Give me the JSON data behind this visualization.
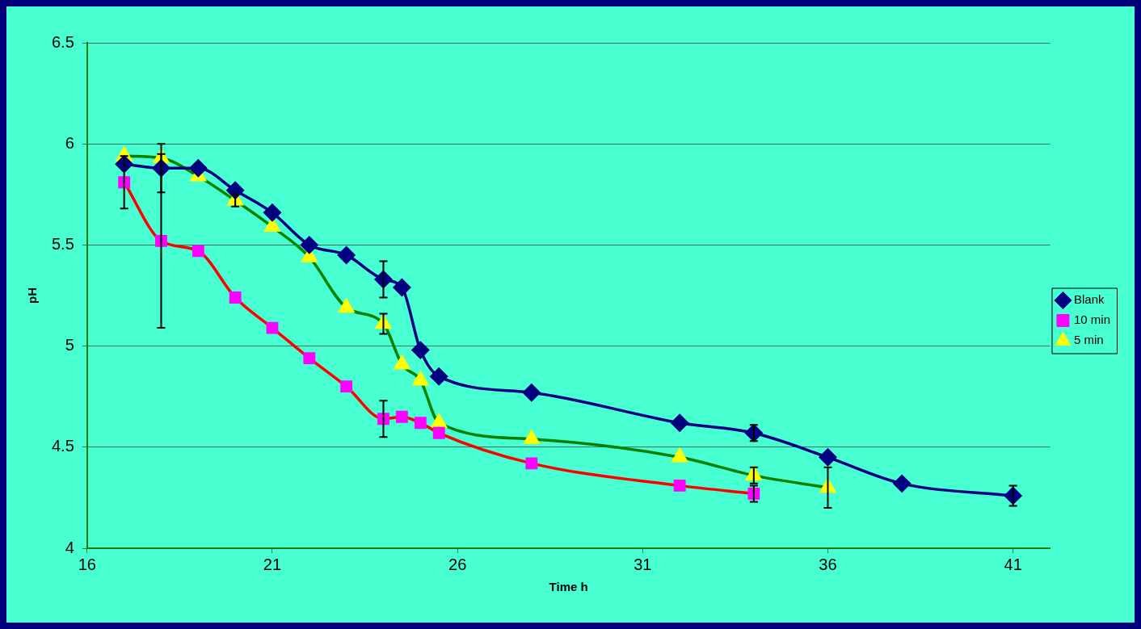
{
  "chart_data": {
    "type": "line",
    "xlabel": "Time h",
    "ylabel": "pH",
    "xlim": [
      16,
      42
    ],
    "xticks": [
      16,
      21,
      26,
      31,
      36,
      41
    ],
    "ylim": [
      4,
      6.5
    ],
    "yticks": [
      4,
      4.5,
      5,
      5.5,
      6,
      6.5
    ],
    "grid": "y",
    "legend": "right",
    "line_style": "solid",
    "series": [
      {
        "name": "Blank",
        "color": "#000080",
        "marker": "diamond",
        "colors": [
          "#000080",
          "#000080",
          "#000080",
          "#000080",
          "#000080",
          "#000080",
          "#000080",
          "#000080",
          "#000080",
          "#000080",
          "#000080",
          "#000080",
          "#000080",
          "#000080",
          "#000080",
          "#000080",
          "#000080"
        ],
        "x": [
          17,
          18,
          19,
          20,
          21,
          22,
          23,
          24,
          24.5,
          25,
          25.5,
          28,
          32,
          34,
          36,
          38,
          41
        ],
        "values": [
          5.9,
          5.88,
          5.88,
          5.77,
          5.66,
          5.5,
          5.45,
          5.33,
          5.29,
          4.98,
          4.85,
          4.77,
          4.62,
          4.57,
          4.45,
          4.32,
          4.26
        ],
        "errors": [
          null,
          0.12,
          null,
          null,
          null,
          null,
          null,
          0.09,
          null,
          null,
          null,
          null,
          null,
          0.04,
          null,
          null,
          0.05
        ]
      },
      {
        "name": "10 min",
        "color": "#ff0000",
        "marker": "square",
        "colors": [
          "#ff00ff",
          "#ff00ff",
          "#ff00ff",
          "#ff00ff",
          "#ff00ff",
          "#ff00ff",
          "#ff00ff",
          "#ff00ff",
          "#ff00ff",
          "#ff00ff",
          "#ff00ff",
          "#ff00ff",
          "#ff00ff",
          "#ff00ff"
        ],
        "x": [
          17,
          18,
          19,
          20,
          21,
          22,
          23,
          24,
          24.5,
          25,
          25.5,
          28,
          32,
          34
        ],
        "values": [
          5.81,
          5.52,
          5.47,
          5.24,
          5.09,
          4.94,
          4.8,
          4.64,
          4.65,
          4.62,
          4.57,
          4.42,
          4.31,
          4.27
        ],
        "errors": [
          0.13,
          0.43,
          null,
          null,
          null,
          null,
          null,
          0.09,
          null,
          null,
          null,
          null,
          null,
          0.04
        ]
      },
      {
        "name": "5 min",
        "color": "#008000",
        "marker": "triangle",
        "colors": [
          "#ffff00",
          "#ffff00",
          "#ffff00",
          "#ffff00",
          "#ffff00",
          "#ffff00",
          "#ffff00",
          "#ffff00",
          "#ffff00",
          "#ffff00",
          "#ffff00",
          "#ffff00",
          "#ffff00",
          "#ffff00",
          "#ffff00"
        ],
        "x": [
          17,
          18,
          19,
          20,
          21,
          22,
          23,
          24,
          24.5,
          25,
          25.5,
          28,
          32,
          34,
          36
        ],
        "values": [
          5.94,
          5.93,
          5.84,
          5.72,
          5.59,
          5.44,
          5.19,
          5.11,
          4.91,
          4.83,
          4.62,
          4.54,
          4.45,
          4.36,
          4.3
        ],
        "errors": [
          null,
          null,
          null,
          0.03,
          null,
          null,
          null,
          0.05,
          null,
          null,
          null,
          null,
          null,
          0.04,
          0.1
        ]
      }
    ]
  }
}
